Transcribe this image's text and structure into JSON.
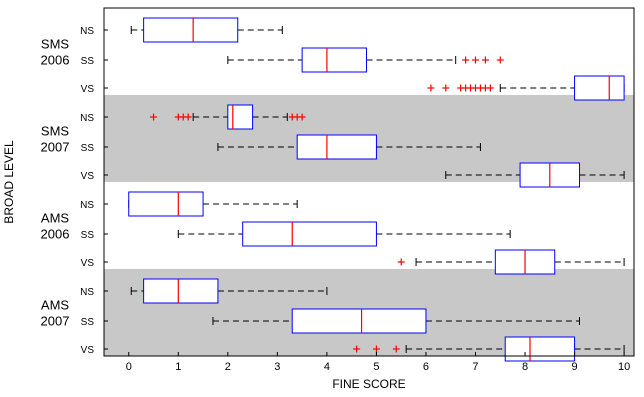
{
  "chart_data": {
    "type": "boxplot",
    "title": "",
    "xlabel": "FINE SCORE",
    "ylabel": "BROAD LEVEL",
    "xlim": [
      -0.5,
      10.2
    ],
    "xticks": [
      "0",
      "1",
      "2",
      "3",
      "4",
      "5",
      "6",
      "7",
      "8",
      "9",
      "10"
    ],
    "groups": [
      {
        "label_line1": "SMS",
        "label_line2": "2006",
        "shaded": false,
        "boxes": [
          {
            "level": "NS",
            "whisker_low": 0.05,
            "q1": 0.3,
            "median": 1.3,
            "q3": 2.2,
            "whisker_high": 3.1,
            "outliers": []
          },
          {
            "level": "SS",
            "whisker_low": 2.0,
            "q1": 3.5,
            "median": 4.0,
            "q3": 4.8,
            "whisker_high": 6.6,
            "outliers": [
              6.8,
              7.0,
              7.2,
              7.5
            ]
          },
          {
            "level": "VS",
            "whisker_low": 7.5,
            "q1": 9.0,
            "median": 9.7,
            "q3": 10.0,
            "whisker_high": 10.0,
            "outliers": [
              6.1,
              6.4,
              6.7,
              6.8,
              6.9,
              7.0,
              7.1,
              7.2,
              7.3
            ]
          }
        ]
      },
      {
        "label_line1": "SMS",
        "label_line2": "2007",
        "shaded": true,
        "boxes": [
          {
            "level": "NS",
            "whisker_low": 1.3,
            "q1": 2.0,
            "median": 2.1,
            "q3": 2.5,
            "whisker_high": 3.2,
            "outliers": [
              0.5,
              1.0,
              1.1,
              1.2,
              3.3,
              3.4,
              3.5
            ]
          },
          {
            "level": "SS",
            "whisker_low": 1.8,
            "q1": 3.4,
            "median": 4.0,
            "q3": 5.0,
            "whisker_high": 7.1,
            "outliers": []
          },
          {
            "level": "VS",
            "whisker_low": 6.4,
            "q1": 7.9,
            "median": 8.5,
            "q3": 9.1,
            "whisker_high": 10.0,
            "outliers": []
          }
        ]
      },
      {
        "label_line1": "AMS",
        "label_line2": "2006",
        "shaded": false,
        "boxes": [
          {
            "level": "NS",
            "whisker_low": 0.0,
            "q1": 0.0,
            "median": 1.0,
            "q3": 1.5,
            "whisker_high": 3.4,
            "outliers": []
          },
          {
            "level": "SS",
            "whisker_low": 1.0,
            "q1": 2.3,
            "median": 3.3,
            "q3": 5.0,
            "whisker_high": 7.7,
            "outliers": []
          },
          {
            "level": "VS",
            "whisker_low": 5.8,
            "q1": 7.4,
            "median": 8.0,
            "q3": 8.6,
            "whisker_high": 10.0,
            "outliers": [
              5.5
            ]
          }
        ]
      },
      {
        "label_line1": "AMS",
        "label_line2": "2007",
        "shaded": true,
        "boxes": [
          {
            "level": "NS",
            "whisker_low": 0.05,
            "q1": 0.3,
            "median": 1.0,
            "q3": 1.8,
            "whisker_high": 4.0,
            "outliers": []
          },
          {
            "level": "SS",
            "whisker_low": 1.7,
            "q1": 3.3,
            "median": 4.7,
            "q3": 6.0,
            "whisker_high": 9.1,
            "outliers": []
          },
          {
            "level": "VS",
            "whisker_low": 5.6,
            "q1": 7.6,
            "median": 8.1,
            "q3": 9.0,
            "whisker_high": 10.0,
            "outliers": [
              4.6,
              5.0,
              5.4
            ]
          }
        ]
      }
    ],
    "colors": {
      "box": "#0000ff",
      "median": "#ff0000",
      "outlier": "#ff0000",
      "whisker": "#000000",
      "shade": "#c8c8c8"
    }
  }
}
